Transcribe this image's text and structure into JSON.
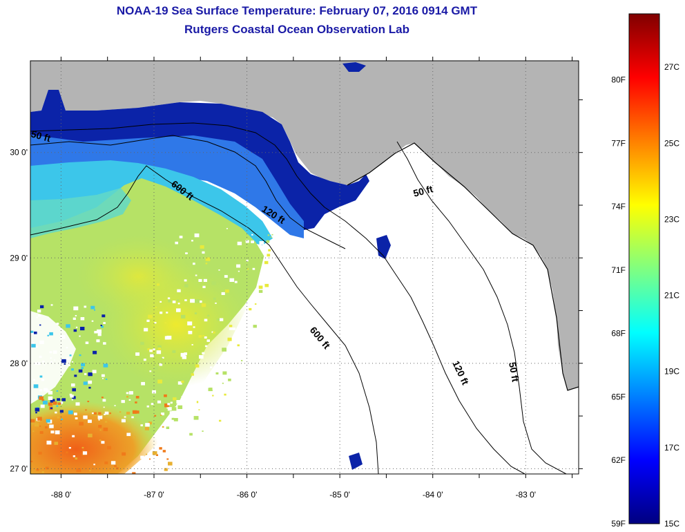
{
  "header": {
    "title": "NOAA-19 Sea Surface Temperature:  February 07, 2016 0914 GMT",
    "subtitle": "Rutgers Coastal Ocean Observation Lab"
  },
  "map": {
    "lon_ticks": [
      {
        "value": -88,
        "label": "-88 0'"
      },
      {
        "value": -87,
        "label": "-87 0'"
      },
      {
        "value": -86,
        "label": "-86 0'"
      },
      {
        "value": -85,
        "label": "-85 0'"
      },
      {
        "value": -84,
        "label": "-84 0'"
      },
      {
        "value": -83,
        "label": "-83 0'"
      }
    ],
    "lat_ticks": [
      {
        "value": 30,
        "label": "30 0'"
      },
      {
        "value": 29,
        "label": "29 0'"
      },
      {
        "value": 28,
        "label": "28 0'"
      },
      {
        "value": 27,
        "label": "27 0'"
      }
    ],
    "lon_range": [
      -88.33,
      -82.43
    ],
    "lat_range": [
      26.95,
      30.87
    ],
    "contour_labels": [
      "50 ft",
      "600 ft",
      "120 ft",
      "50 ft",
      "600 ft",
      "120 ft",
      "50 ft"
    ],
    "colors": {
      "land": "#b4b4b4",
      "cold": "#0a1f9e",
      "cyan": "#38c4e8",
      "green": "#9fe07a",
      "yellow": "#e8ea3c",
      "orange": "#f07a1a"
    }
  },
  "colorbar": {
    "f_labels": [
      {
        "value": 80,
        "label": "80F"
      },
      {
        "value": 77,
        "label": "77F"
      },
      {
        "value": 74,
        "label": "74F"
      },
      {
        "value": 71,
        "label": "71F"
      },
      {
        "value": 68,
        "label": "68F"
      },
      {
        "value": 65,
        "label": "65F"
      },
      {
        "value": 62,
        "label": "62F"
      },
      {
        "value": 59,
        "label": "59F"
      }
    ],
    "c_labels": [
      {
        "value": 27,
        "label": "27C"
      },
      {
        "value": 25,
        "label": "25C"
      },
      {
        "value": 23,
        "label": "23C"
      },
      {
        "value": 21,
        "label": "21C"
      },
      {
        "value": 19,
        "label": "19C"
      },
      {
        "value": 17,
        "label": "17C"
      },
      {
        "value": 15,
        "label": "15C"
      }
    ],
    "range_c": [
      15,
      28.4
    ],
    "stops": [
      "#000080",
      "#0000ff",
      "#0080ff",
      "#00ffff",
      "#80ff80",
      "#ffff00",
      "#ff8000",
      "#ff0000",
      "#800000"
    ]
  }
}
